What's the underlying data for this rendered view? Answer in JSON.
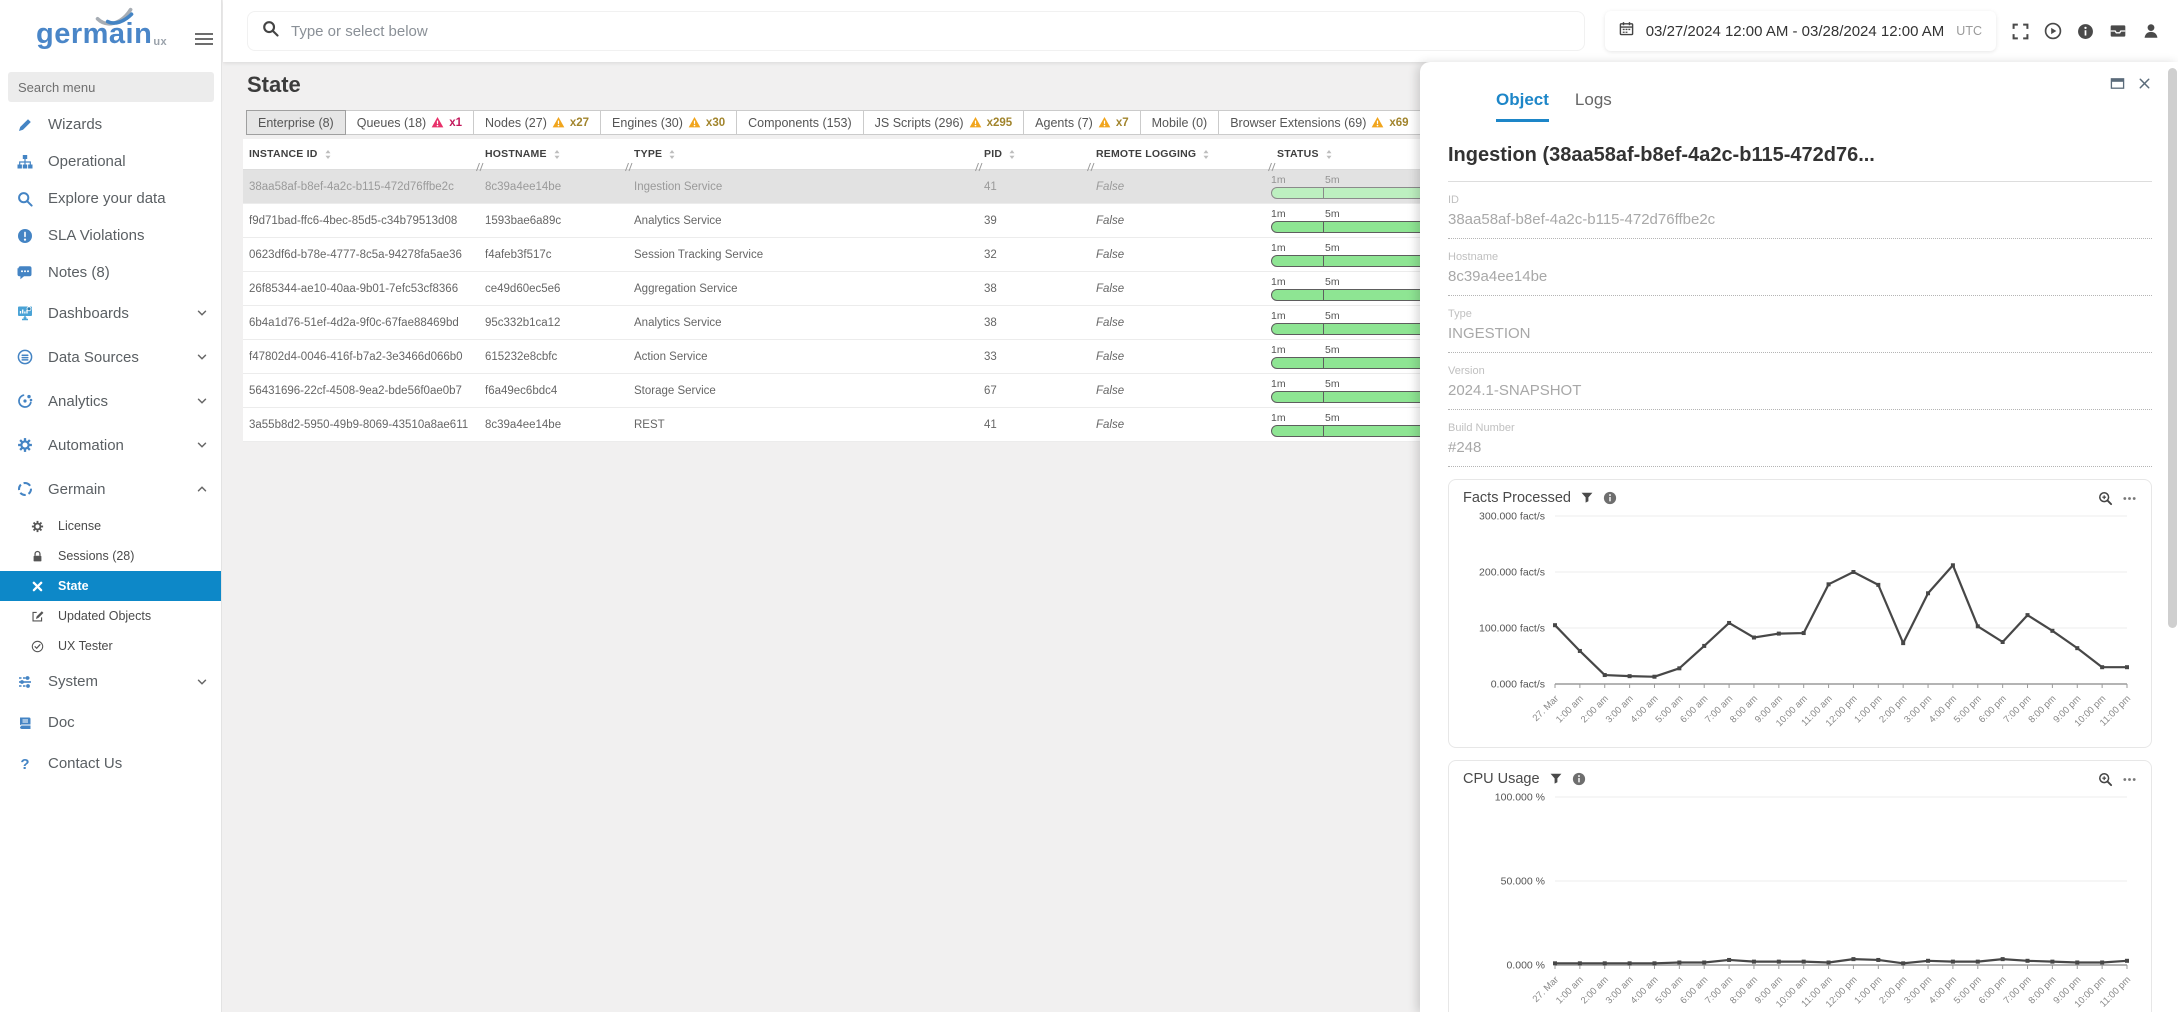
{
  "colors": {
    "accent_blue": "#1d86c8",
    "sidebar_icon_blue": "#4484c4",
    "selected_item_blue": "#0d88c8",
    "bar_green": "#8ee593",
    "bar_green_selected": "#bdf0c0",
    "warn_yellow": "#f1a51d",
    "warn_red": "#e8316a"
  },
  "sidebar": {
    "logo_text": "germain",
    "logo_sub": "ux",
    "search_placeholder": "Search menu",
    "items": [
      {
        "label": "Wizards",
        "icon": "pencil"
      },
      {
        "label": "Operational",
        "icon": "sitemap"
      },
      {
        "label": "Explore your data",
        "icon": "search"
      },
      {
        "label": "SLA Violations",
        "icon": "exclamation-circle"
      },
      {
        "label": "Notes (8)",
        "icon": "comment"
      },
      {
        "label": "Dashboards",
        "icon": "dashboard",
        "chevron": "down"
      },
      {
        "label": "Data Sources",
        "icon": "data-sources",
        "chevron": "down"
      },
      {
        "label": "Analytics",
        "icon": "analytics",
        "chevron": "down"
      },
      {
        "label": "Automation",
        "icon": "gear",
        "chevron": "down"
      },
      {
        "label": "Germain",
        "icon": "dashed-circle",
        "chevron": "up"
      }
    ],
    "germain_subitems": [
      {
        "label": "License",
        "icon": "gear-small"
      },
      {
        "label": "Sessions  (28)",
        "icon": "lock"
      },
      {
        "label": "State",
        "icon": "tools",
        "selected": true
      },
      {
        "label": "Updated Objects",
        "icon": "edit-square"
      },
      {
        "label": "UX Tester",
        "icon": "check-circle"
      }
    ],
    "bottom_items": [
      {
        "label": "System",
        "icon": "sliders",
        "chevron": "down"
      },
      {
        "label": "Doc",
        "icon": "book"
      },
      {
        "label": "Contact Us",
        "icon": "question"
      }
    ]
  },
  "topbar": {
    "search_placeholder": "Type or select below",
    "date_range": "03/27/2024 12:00 AM - 03/28/2024 12:00 AM",
    "timezone": "UTC",
    "icons": [
      "fullscreen",
      "play-circle",
      "info-circle",
      "inbox",
      "user"
    ]
  },
  "main": {
    "title": "State",
    "tabs": [
      {
        "label": "Enterprise (8)",
        "selected": true
      },
      {
        "label": "Queues (18)",
        "warning": "x1",
        "warning_color": "red"
      },
      {
        "label": "Nodes (27)",
        "warning": "x27",
        "warning_color": "yellow"
      },
      {
        "label": "Engines (30)",
        "warning": "x30",
        "warning_color": "yellow"
      },
      {
        "label": "Components (153)"
      },
      {
        "label": "JS Scripts (296)",
        "warning": "x295",
        "warning_color": "yellow"
      },
      {
        "label": "Agents (7)",
        "warning": "x7",
        "warning_color": "yellow"
      },
      {
        "label": "Mobile (0)"
      },
      {
        "label": "Browser Extensions (69)",
        "warning": "x69",
        "warning_color": "yellow"
      }
    ],
    "table": {
      "columns": [
        "INSTANCE ID",
        "HOSTNAME",
        "TYPE",
        "PID",
        "REMOTE LOGGING",
        "STATUS"
      ],
      "status_labels": [
        "1m",
        "5m"
      ],
      "rows": [
        {
          "instance_id": "38aa58af-b8ef-4a2c-b115-472d76ffbe2c",
          "hostname": "8c39a4ee14be",
          "type": "Ingestion Service",
          "pid": "41",
          "remote_logging": "False",
          "selected": true
        },
        {
          "instance_id": "f9d71bad-ffc6-4bec-85d5-c34b79513d08",
          "hostname": "1593bae6a89c",
          "type": "Analytics Service",
          "pid": "39",
          "remote_logging": "False"
        },
        {
          "instance_id": "0623df6d-b78e-4777-8c5a-94278fa5ae36",
          "hostname": "f4afeb3f517c",
          "type": "Session Tracking Service",
          "pid": "32",
          "remote_logging": "False"
        },
        {
          "instance_id": "26f85344-ae10-40aa-9b01-7efc53cf8366",
          "hostname": "ce49d60ec5e6",
          "type": "Aggregation Service",
          "pid": "38",
          "remote_logging": "False"
        },
        {
          "instance_id": "6b4a1d76-51ef-4d2a-9f0c-67fae88469bd",
          "hostname": "95c332b1ca12",
          "type": "Analytics Service",
          "pid": "38",
          "remote_logging": "False"
        },
        {
          "instance_id": "f47802d4-0046-416f-b7a2-3e3466d066b0",
          "hostname": "615232e8cbfc",
          "type": "Action Service",
          "pid": "33",
          "remote_logging": "False"
        },
        {
          "instance_id": "56431696-22cf-4508-9ea2-bde56f0ae0b7",
          "hostname": "f6a49ec6bdc4",
          "type": "Storage Service",
          "pid": "67",
          "remote_logging": "False"
        },
        {
          "instance_id": "3a55b8d2-5950-49b9-8069-43510a8ae611",
          "hostname": "8c39a4ee14be",
          "type": "REST",
          "pid": "41",
          "remote_logging": "False"
        }
      ]
    }
  },
  "panel": {
    "tabs": [
      {
        "label": "Object",
        "selected": true
      },
      {
        "label": "Logs"
      }
    ],
    "controls": [
      "window",
      "close"
    ],
    "title": "Ingestion (38aa58af-b8ef-4a2c-b115-472d76...",
    "fields": [
      {
        "label": "ID",
        "value": "38aa58af-b8ef-4a2c-b115-472d76ffbe2c"
      },
      {
        "label": "Hostname",
        "value": "8c39a4ee14be"
      },
      {
        "label": "Type",
        "value": "INGESTION"
      },
      {
        "label": "Version",
        "value": "2024.1-SNAPSHOT"
      },
      {
        "label": "Build Number",
        "value": "#248"
      }
    ]
  },
  "chart_data": [
    {
      "type": "line",
      "title": "Facts Processed",
      "header_icons": [
        "filter",
        "info-small"
      ],
      "corner_icons": [
        "zoom-in",
        "ellipsis"
      ],
      "x": [
        "27. Mar",
        "1:00 am",
        "2:00 am",
        "3:00 am",
        "4:00 am",
        "5:00 am",
        "6:00 am",
        "7:00 am",
        "8:00 am",
        "9:00 am",
        "10:00 am",
        "11:00 am",
        "12:00 pm",
        "1:00 pm",
        "2:00 pm",
        "3:00 pm",
        "4:00 pm",
        "5:00 pm",
        "6:00 pm",
        "7:00 pm",
        "8:00 pm",
        "9:00 pm",
        "10:00 pm",
        "11:00 pm"
      ],
      "values": [
        105000,
        59000,
        16000,
        14000,
        13000,
        28000,
        68000,
        109000,
        83000,
        90000,
        91000,
        178000,
        200000,
        177000,
        73000,
        162000,
        212000,
        103000,
        75000,
        123000,
        95000,
        64000,
        30000,
        30000
      ],
      "ylabel": "fact/s",
      "ylim": [
        0,
        300000
      ],
      "ytick_values": [
        300000,
        200000,
        100000,
        0
      ],
      "ytick_labels": [
        "300.000 fact/s",
        "200.000 fact/s",
        "100.000 fact/s",
        "0.000 fact/s"
      ],
      "grid": true,
      "legend": "none"
    },
    {
      "type": "line",
      "title": "CPU Usage",
      "header_icons": [
        "filter",
        "info-small"
      ],
      "corner_icons": [
        "zoom-in",
        "ellipsis"
      ],
      "x": [
        "27. Mar",
        "1:00 am",
        "2:00 am",
        "3:00 am",
        "4:00 am",
        "5:00 am",
        "6:00 am",
        "7:00 am",
        "8:00 am",
        "9:00 am",
        "10:00 am",
        "11:00 am",
        "12:00 pm",
        "1:00 pm",
        "2:00 pm",
        "3:00 pm",
        "4:00 pm",
        "5:00 pm",
        "6:00 pm",
        "7:00 pm",
        "8:00 pm",
        "9:00 pm",
        "10:00 pm",
        "11:00 pm"
      ],
      "values": [
        1,
        1,
        1,
        1,
        1,
        1.5,
        1.5,
        3,
        2,
        2,
        2,
        1.5,
        3.5,
        3,
        1,
        2.5,
        2,
        2,
        3.5,
        2.5,
        2,
        1.5,
        1.5,
        2.5
      ],
      "ylabel": "%",
      "ylim": [
        0,
        100
      ],
      "ytick_values": [
        100,
        50,
        0
      ],
      "ytick_labels": [
        "100.000 %",
        "50.000 %",
        "0.000 %"
      ],
      "grid": true,
      "legend": "none"
    }
  ]
}
